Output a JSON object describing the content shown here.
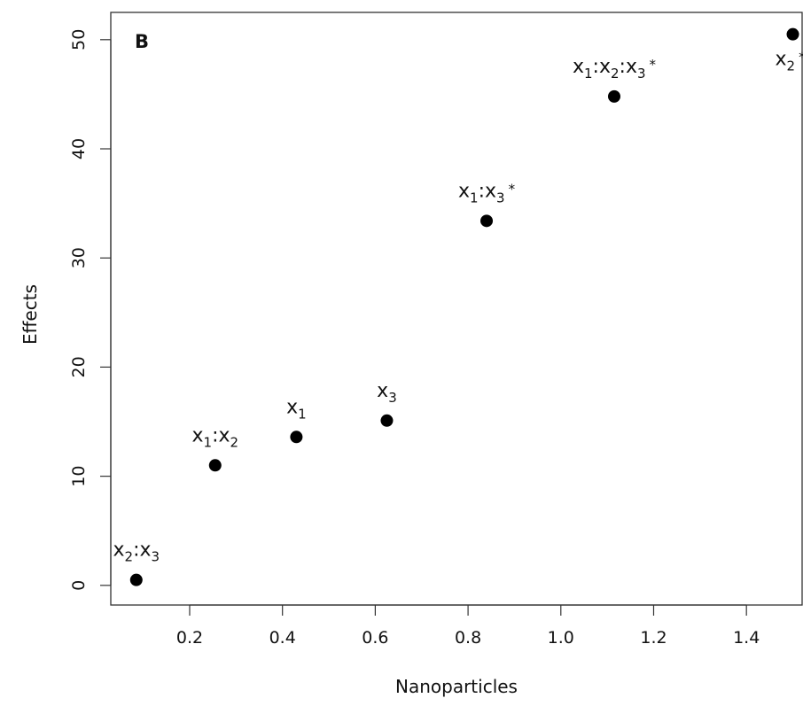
{
  "chart_data": {
    "type": "scatter",
    "panel_label": "B",
    "xlabel": "Nanoparticles",
    "ylabel": "Effects",
    "xlim": [
      0.03,
      1.52
    ],
    "ylim": [
      -1.8,
      52.5
    ],
    "xticks": [
      0.2,
      0.4,
      0.6,
      0.8,
      1.0,
      1.2,
      1.4
    ],
    "xtick_labels": [
      "0.2",
      "0.4",
      "0.6",
      "0.8",
      "1.0",
      "1.2",
      "1.4"
    ],
    "yticks": [
      0,
      10,
      20,
      30,
      40,
      50
    ],
    "ytick_labels": [
      "0",
      "10",
      "20",
      "30",
      "40",
      "50"
    ],
    "grid": false,
    "point_color": "#000000",
    "points": [
      {
        "x": 0.085,
        "y": 0.5,
        "label": {
          "base": "x",
          "subs": [
            "2",
            "3"
          ],
          "star": false
        }
      },
      {
        "x": 0.255,
        "y": 11.0,
        "label": {
          "base": "x",
          "subs": [
            "1",
            "2"
          ],
          "star": false
        }
      },
      {
        "x": 0.43,
        "y": 13.6,
        "label": {
          "base": "x",
          "subs": [
            "1"
          ],
          "star": false
        }
      },
      {
        "x": 0.625,
        "y": 15.1,
        "label": {
          "base": "x",
          "subs": [
            "3"
          ],
          "star": false
        }
      },
      {
        "x": 0.84,
        "y": 33.4,
        "label": {
          "base": "x",
          "subs": [
            "1",
            "3"
          ],
          "star": true
        }
      },
      {
        "x": 1.115,
        "y": 44.8,
        "label": {
          "base": "x",
          "subs": [
            "1",
            "2",
            "3"
          ],
          "star": true
        }
      },
      {
        "x": 1.5,
        "y": 50.5,
        "label": {
          "base": "x",
          "subs": [
            "2"
          ],
          "star": true
        }
      }
    ],
    "star_symbol": "*",
    "interaction_separator": ":"
  }
}
